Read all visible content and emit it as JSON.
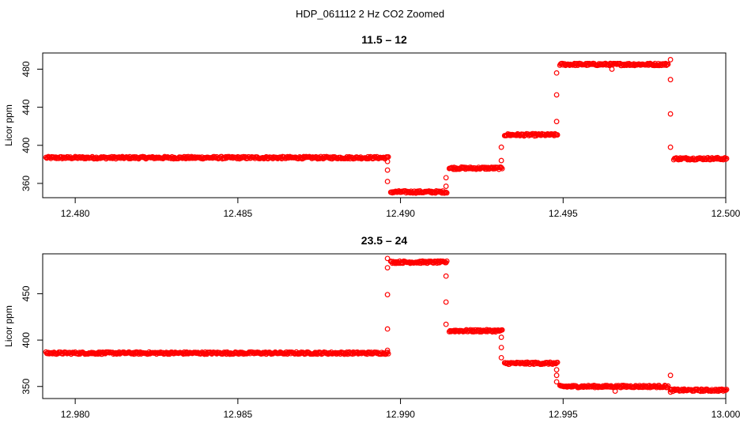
{
  "figure": {
    "title": "HDP_061112  2 Hz CO2 Zoomed"
  },
  "chart_data": [
    {
      "type": "scatter",
      "title": "11.5 – 12",
      "xlabel": "",
      "ylabel": "Licor ppm",
      "xlim": [
        12.479,
        12.5
      ],
      "ylim": [
        345,
        497
      ],
      "xticks": [
        12.48,
        12.485,
        12.49,
        12.495,
        12.5
      ],
      "xtick_labels": [
        "12.480",
        "12.485",
        "12.490",
        "12.495",
        "12.500"
      ],
      "yticks": [
        360,
        400,
        440,
        480
      ],
      "ytick_labels": [
        "360",
        "400",
        "440",
        "480"
      ],
      "marker": "open-circle",
      "color": "#ff0000",
      "grid": false,
      "legend": "none",
      "segments": [
        {
          "x_start": 12.4791,
          "x_end": 12.4896,
          "y": 387
        },
        {
          "x_start": 12.4897,
          "x_end": 12.4914,
          "y": 351
        },
        {
          "x_start": 12.4915,
          "x_end": 12.4931,
          "y": 376
        },
        {
          "x_start": 12.4932,
          "x_end": 12.4948,
          "y": 411
        },
        {
          "x_start": 12.4949,
          "x_end": 12.4982,
          "y": 485
        },
        {
          "x_start": 12.4984,
          "x_end": 12.5,
          "y": 386
        }
      ],
      "transitions": [
        {
          "x": 12.4896,
          "y": [
            383,
            374,
            362
          ]
        },
        {
          "x": 12.4914,
          "y": [
            357,
            366
          ]
        },
        {
          "x": 12.4931,
          "y": [
            384,
            398
          ]
        },
        {
          "x": 12.4948,
          "y": [
            425,
            453,
            476
          ]
        },
        {
          "x": 12.4983,
          "y": [
            490,
            469,
            433,
            398
          ]
        }
      ],
      "outliers": [
        {
          "x": 12.4965,
          "y": 480
        }
      ]
    },
    {
      "type": "scatter",
      "title": "23.5 – 24",
      "xlabel": "",
      "ylabel": "Licor ppm",
      "xlim": [
        12.979,
        13.0
      ],
      "ylim": [
        337,
        493
      ],
      "xticks": [
        12.98,
        12.985,
        12.99,
        12.995,
        13.0
      ],
      "xtick_labels": [
        "12.980",
        "12.985",
        "12.990",
        "12.995",
        "13.000"
      ],
      "yticks": [
        350,
        400,
        450
      ],
      "ytick_labels": [
        "350",
        "400",
        "450"
      ],
      "marker": "open-circle",
      "color": "#ff0000",
      "grid": false,
      "legend": "none",
      "segments": [
        {
          "x_start": 12.9791,
          "x_end": 12.9896,
          "y": 386
        },
        {
          "x_start": 12.9897,
          "x_end": 12.9914,
          "y": 484
        },
        {
          "x_start": 12.9915,
          "x_end": 12.9931,
          "y": 410
        },
        {
          "x_start": 12.9932,
          "x_end": 12.9948,
          "y": 375
        },
        {
          "x_start": 12.9949,
          "x_end": 12.9982,
          "y": 350
        },
        {
          "x_start": 12.9983,
          "x_end": 13.0,
          "y": 346
        }
      ],
      "transitions": [
        {
          "x": 12.9896,
          "y": [
            389,
            412,
            449,
            478,
            488
          ]
        },
        {
          "x": 12.9914,
          "y": [
            469,
            441,
            417
          ]
        },
        {
          "x": 12.9931,
          "y": [
            403,
            392,
            381
          ]
        },
        {
          "x": 12.9948,
          "y": [
            368,
            362,
            355
          ]
        },
        {
          "x": 12.9983,
          "y": [
            362,
            344
          ]
        }
      ],
      "outliers": [
        {
          "x": 12.9966,
          "y": 345
        }
      ]
    }
  ]
}
